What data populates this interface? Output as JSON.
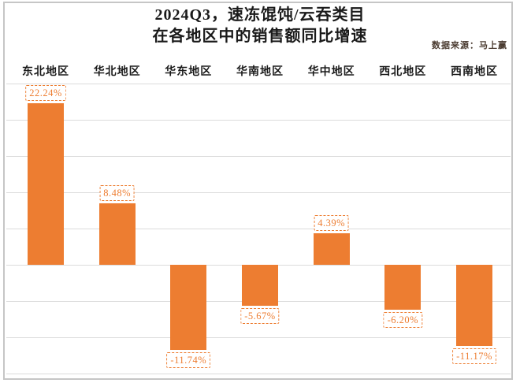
{
  "title": {
    "line1": "2024Q3，速冻馄饨/云吞类目",
    "line2": "在各地区中的销售额同比增速"
  },
  "source_label": "数据来源：马上赢",
  "chart_data": {
    "type": "bar",
    "title": "2024Q3，速冻馄饨/云吞类目 在各地区中的销售额同比增速",
    "categories": [
      "东北地区",
      "华北地区",
      "华东地区",
      "华南地区",
      "华中地区",
      "西北地区",
      "西南地区"
    ],
    "values": [
      22.24,
      8.48,
      -11.74,
      -5.67,
      4.39,
      -6.2,
      -11.17
    ],
    "value_labels": [
      "22.24%",
      "8.48%",
      "-11.74%",
      "-5.67%",
      "4.39%",
      "-6.20%",
      "-11.17%"
    ],
    "ylim": [
      -15,
      25
    ],
    "gridline_step": 5,
    "grid": "on",
    "legend": "none",
    "bar_color": "#ED7D31",
    "gridline_color": "#dcdcdc",
    "label_box_style": "dashed-orange-border"
  }
}
